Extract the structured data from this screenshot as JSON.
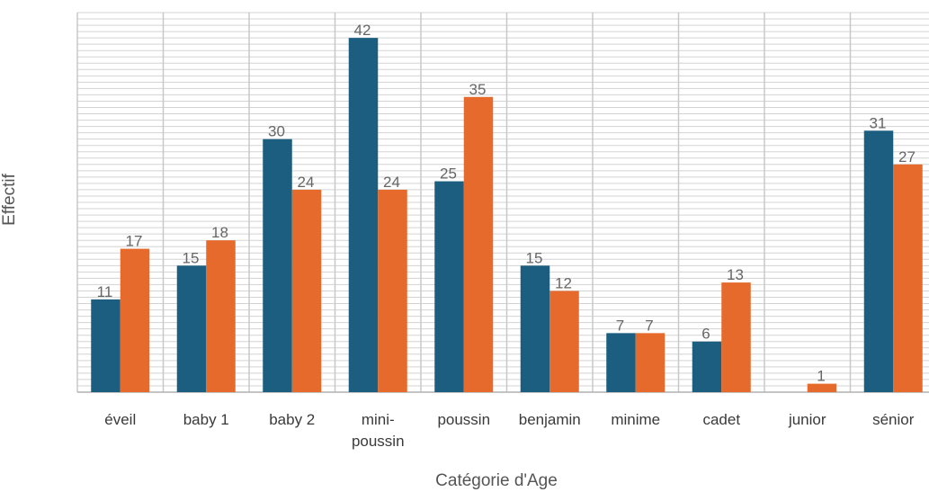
{
  "chart_data": {
    "type": "bar",
    "xlabel": "Catégorie d'Age",
    "ylabel": "Effectif",
    "categories": [
      "éveil",
      "baby 1",
      "baby 2",
      "mini-\npoussin",
      "poussin",
      "benjamin",
      "minime",
      "cadet",
      "junior",
      "sénior"
    ],
    "series": [
      {
        "values": [
          11,
          15,
          30,
          42,
          25,
          15,
          7,
          6,
          0,
          31
        ],
        "show_label": [
          true,
          true,
          true,
          true,
          true,
          true,
          true,
          true,
          false,
          true
        ]
      },
      {
        "values": [
          17,
          18,
          24,
          24,
          35,
          12,
          7,
          13,
          1,
          27
        ],
        "show_label": [
          true,
          true,
          true,
          true,
          true,
          true,
          true,
          true,
          true,
          true
        ]
      }
    ],
    "ylim": [
      0,
      45
    ],
    "grid": true,
    "colors": [
      "#1b5e80",
      "#e56a2c"
    ]
  }
}
